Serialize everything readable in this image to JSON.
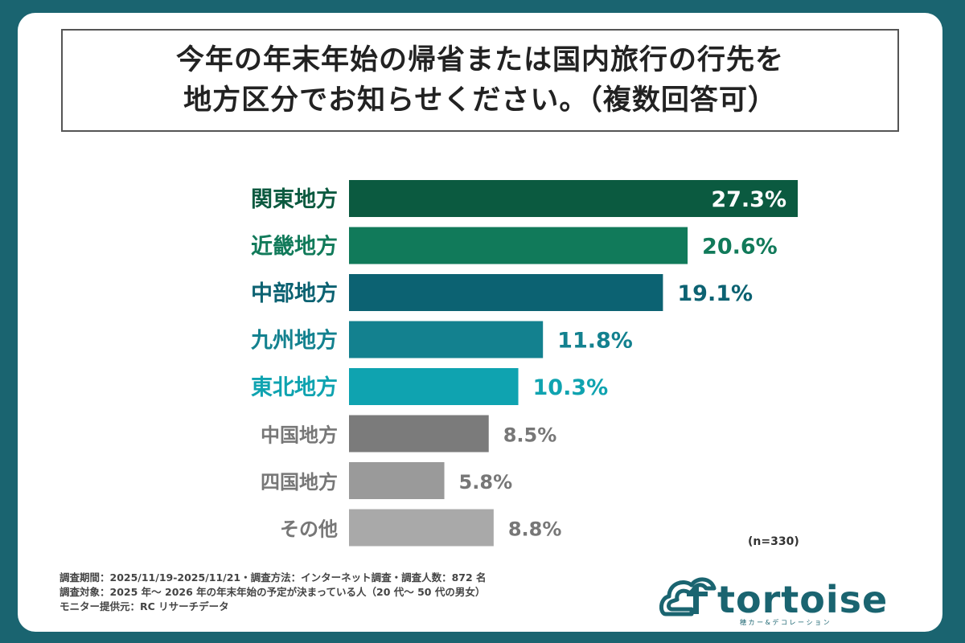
{
  "title": {
    "line1": "今年の年末年始の帰省または国内旅行の行先を",
    "line2": "地方区分でお知らせください。（複数回答可）"
  },
  "chart_data": {
    "type": "bar",
    "orientation": "horizontal",
    "categories": [
      "関東地方",
      "近畿地方",
      "中部地方",
      "九州地方",
      "東北地方",
      "中国地方",
      "四国地方",
      "その他"
    ],
    "values": [
      27.3,
      20.6,
      19.1,
      11.8,
      10.3,
      8.5,
      5.8,
      8.8
    ],
    "value_labels": [
      "27.3%",
      "20.6%",
      "19.1%",
      "11.8%",
      "10.3%",
      "8.5%",
      "5.8%",
      "8.8%"
    ],
    "unit": "%",
    "xlim": [
      0,
      27.3
    ],
    "colors": [
      "#0b5a40",
      "#117a5a",
      "#0c6272",
      "#13818f",
      "#0fa3b0",
      "#7b7b7b",
      "#9a9a9a",
      "#a9a9a9"
    ],
    "label_colors": [
      "#0b5a40",
      "#117a5a",
      "#0c6272",
      "#13818f",
      "#0fa3b0",
      "#777777",
      "#777777",
      "#777777"
    ],
    "inside_label_first": true
  },
  "sample_note": "(n=330)",
  "footer": {
    "line1": "調査期間：2025/11/19-2025/11/21・調査方法：インターネット調査・調査人数：872 名",
    "line2": "調査対象：2025 年～ 2026 年の年末年始の予定が決まっている人（20 代～ 50 代の男女）",
    "line3": "モニター提供元：RC リサーチデータ"
  },
  "logo": {
    "text": "tortoise",
    "tagline": "穂 カ ー & デ コ レ ー シ ョ ン",
    "color": "#1a6470"
  }
}
